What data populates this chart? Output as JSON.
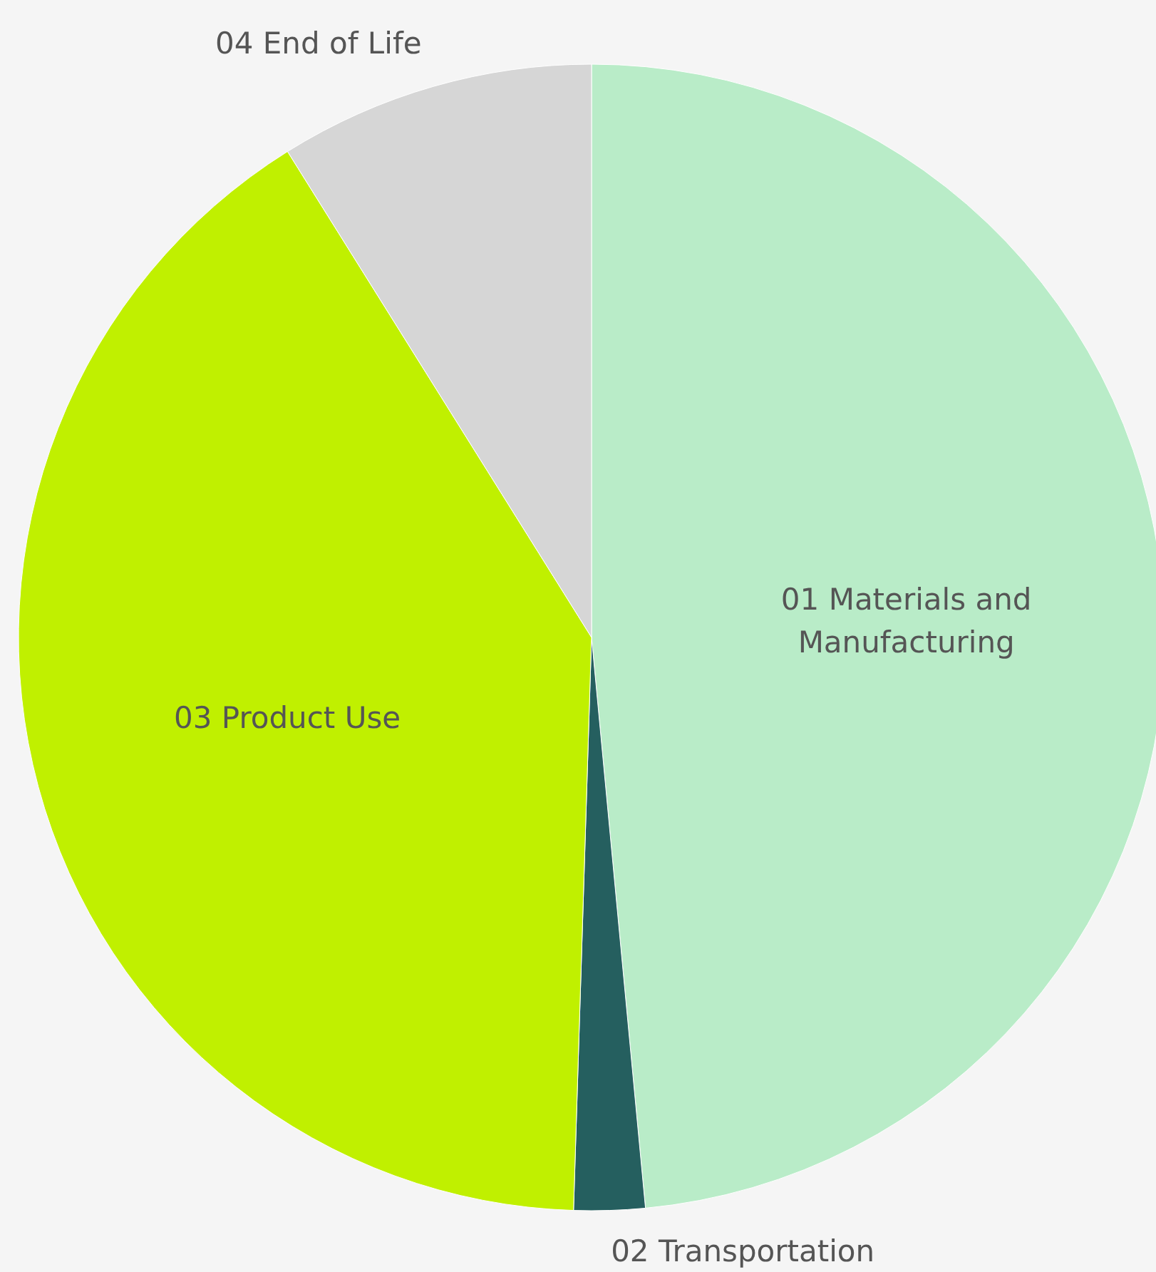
{
  "chart_data": {
    "type": "pie",
    "categories": [
      "01 Materials and Manufacturing",
      "02 Transportation",
      "03 Product Use",
      "04 End of Life"
    ],
    "values": [
      48.5,
      2,
      40.6,
      8.9
    ],
    "colors": [
      "#b9ecc8",
      "#255f5f",
      "#c0f000",
      "#d6d6d6"
    ]
  }
}
